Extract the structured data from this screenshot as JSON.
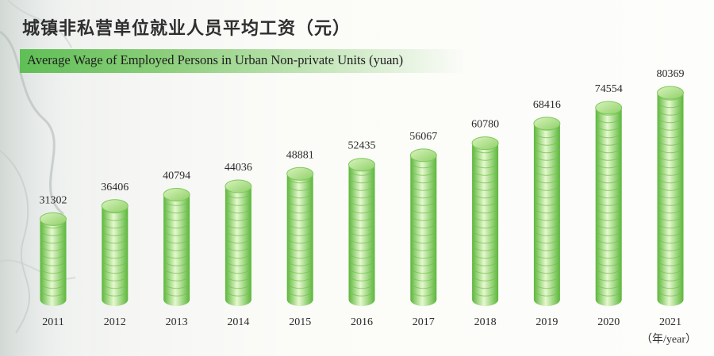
{
  "title_cn": "城镇非私营单位就业人员平均工资（元）",
  "title_en": "Average Wage of Employed Persons in Urban Non-private Units (yuan)",
  "unit_label": "（年/year）",
  "colors": {
    "coin_light": "#e6f8cf",
    "coin_mid": "#9ddb72",
    "coin_dark": "#5bb63a",
    "band": "#5fbf55"
  },
  "chart_data": {
    "type": "bar",
    "title": "城镇非私营单位就业人员平均工资（元）",
    "subtitle": "Average Wage of Employed Persons in Urban Non-private Units (yuan)",
    "xlabel": "（年/year）",
    "ylabel": "",
    "categories": [
      "2011",
      "2012",
      "2013",
      "2014",
      "2015",
      "2016",
      "2017",
      "2018",
      "2019",
      "2020",
      "2021"
    ],
    "values": [
      31302,
      36406,
      40794,
      44036,
      48881,
      52435,
      56067,
      60780,
      68416,
      74554,
      80369
    ],
    "ylim": [
      0,
      80369
    ],
    "grid": false,
    "legend": "none"
  }
}
